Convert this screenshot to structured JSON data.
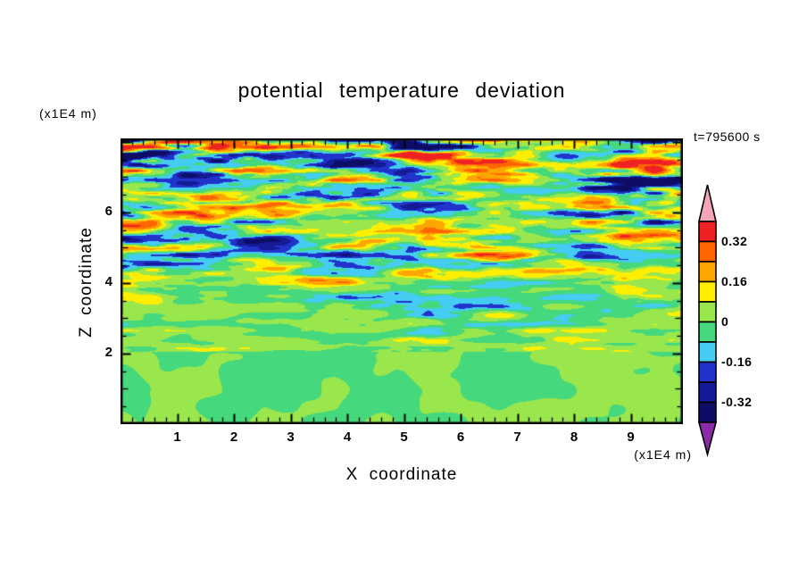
{
  "chart_data": {
    "type": "heatmap",
    "title": "potential temperature deviation",
    "xlabel": "X coordinate",
    "ylabel": "Z coordinate",
    "x_unit_label": "(x1E4 m)",
    "y_unit_label": "(x1E4 m)",
    "timestamp": "t=795600 s",
    "xlim": [
      0,
      9.92
    ],
    "ylim": [
      0,
      8.1
    ],
    "x_ticks": [
      1,
      2,
      3,
      4,
      5,
      6,
      7,
      8,
      9
    ],
    "y_ticks": [
      2,
      4,
      6
    ],
    "grid": false,
    "legend_position": "right-colorbar",
    "colorbar": {
      "label_values": [
        0.32,
        0.16,
        0,
        -0.16,
        -0.32
      ],
      "contour_interval": 0.08,
      "thresholds": [
        -0.4,
        -0.32,
        -0.24,
        -0.16,
        -0.08,
        0,
        0.08,
        0.16,
        0.24,
        0.32,
        0.4
      ],
      "colors_ascending": [
        "#8a2bab",
        "#0d0d66",
        "#151a96",
        "#2233cc",
        "#44ccf2",
        "#46d87c",
        "#99e64d",
        "#ffee00",
        "#ffa500",
        "#ff6600",
        "#ee2222",
        "#f2a6b8"
      ],
      "arrow_bottom_color": "#8a2bab",
      "arrow_top_color": "#f2a6b8"
    },
    "field": {
      "description": "Stratified turbulence: thin horizontally-stretched temperature-deviation streaks above z=2 whose amplitude grows with height (strong red/orange and blue/navy streaks near the top), over a smooth green convective region with lighter-green plumes below z=2.",
      "blob_top": 2.05,
      "seeds": [
        11,
        23,
        37,
        53
      ],
      "value_range_shown": [
        -0.395,
        0.395
      ]
    }
  }
}
